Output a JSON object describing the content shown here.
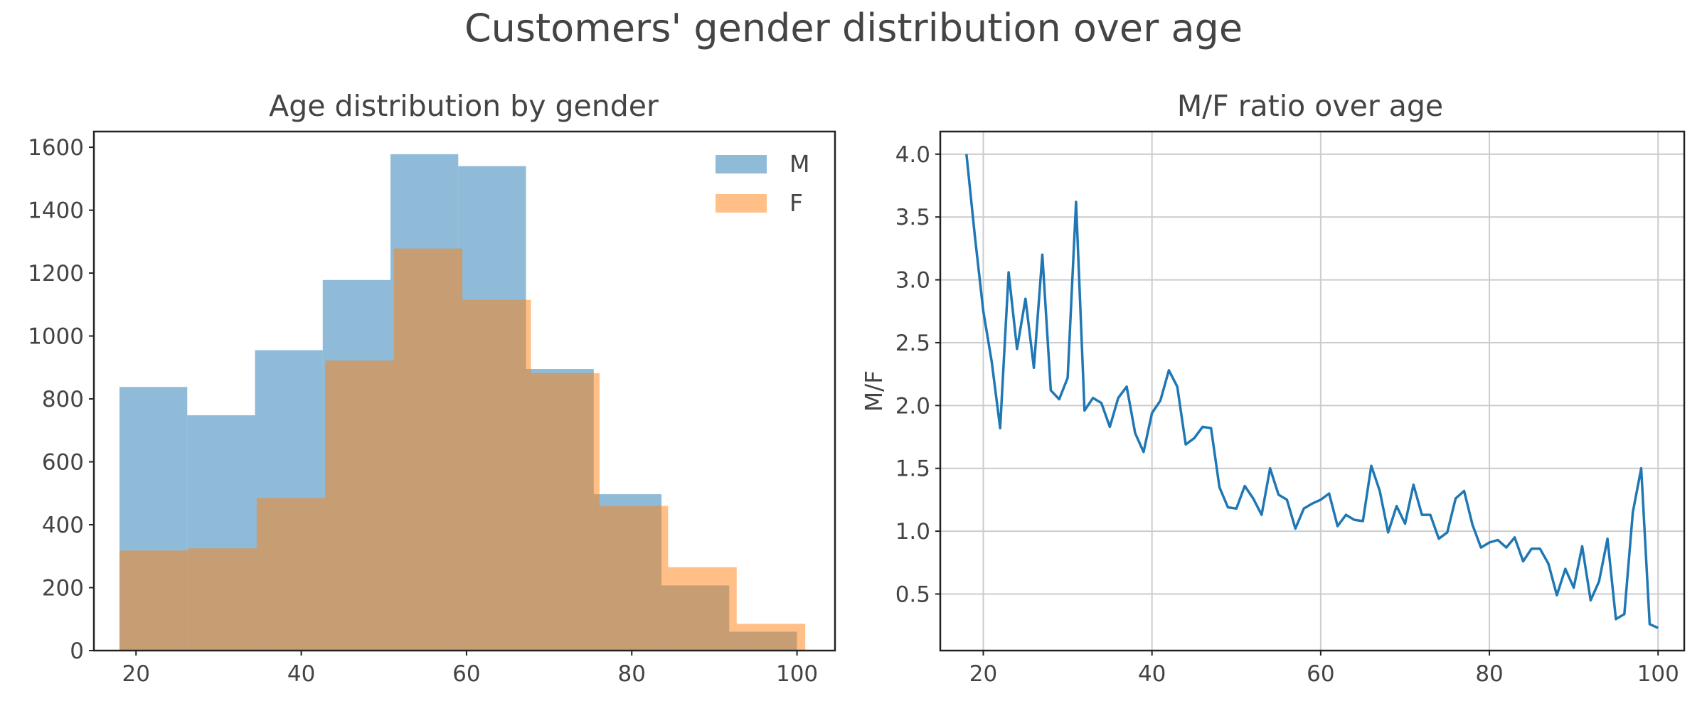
{
  "figure": {
    "title": "Customers' gender distribution over age"
  },
  "chart_data": [
    {
      "type": "bar",
      "subtype": "histogram-overlay",
      "title": "Age distribution by gender",
      "xlabel": "",
      "ylabel": "",
      "xlim": [
        14.9,
        104.6
      ],
      "ylim": [
        0,
        1650
      ],
      "xticks": [
        20,
        40,
        60,
        80,
        100
      ],
      "yticks": [
        0,
        200,
        400,
        600,
        800,
        1000,
        1200,
        1400,
        1600
      ],
      "grid": false,
      "legend": "top-right",
      "series": [
        {
          "name": "M",
          "color": "#1f77b4",
          "opacity": 0.5,
          "bin_edges": [
            18,
            26.2,
            34.4,
            42.6,
            50.8,
            59,
            67.2,
            75.4,
            83.6,
            91.8,
            100
          ],
          "values": [
            838,
            748,
            955,
            1178,
            1578,
            1540,
            895,
            497,
            207,
            60
          ]
        },
        {
          "name": "F",
          "color": "#ff7f0e",
          "opacity": 0.5,
          "bin_edges": [
            18,
            26.3,
            34.6,
            42.9,
            51.2,
            59.5,
            67.8,
            76.1,
            84.4,
            92.7,
            101
          ],
          "values": [
            318,
            325,
            485,
            922,
            1278,
            1115,
            882,
            460,
            265,
            85
          ]
        }
      ]
    },
    {
      "type": "line",
      "title": "M/F ratio over age",
      "xlabel": "",
      "ylabel": "M/F",
      "xlim": [
        14.9,
        103.1
      ],
      "ylim": [
        0.05,
        4.18
      ],
      "xticks": [
        20,
        40,
        60,
        80,
        100
      ],
      "yticks": [
        0.5,
        1.0,
        1.5,
        2.0,
        2.5,
        3.0,
        3.5,
        4.0
      ],
      "ytick_labels": [
        "0.5",
        "1.0",
        "1.5",
        "2.0",
        "2.5",
        "3.0",
        "3.5",
        "4.0"
      ],
      "grid": true,
      "series": [
        {
          "color": "#1f77b4",
          "x": [
            18,
            19,
            20,
            21,
            22,
            23,
            24,
            25,
            26,
            27,
            28,
            29,
            30,
            31,
            32,
            33,
            34,
            35,
            36,
            37,
            38,
            39,
            40,
            41,
            42,
            43,
            44,
            45,
            46,
            47,
            48,
            49,
            50,
            51,
            52,
            53,
            54,
            55,
            56,
            57,
            58,
            59,
            60,
            61,
            62,
            63,
            64,
            65,
            66,
            67,
            68,
            69,
            70,
            71,
            72,
            73,
            74,
            75,
            76,
            77,
            78,
            79,
            80,
            81,
            82,
            83,
            84,
            85,
            86,
            87,
            88,
            89,
            90,
            91,
            92,
            93,
            94,
            95,
            96,
            97,
            98,
            99,
            100
          ],
          "y": [
            4.0,
            3.35,
            2.75,
            2.35,
            1.82,
            3.06,
            2.45,
            2.85,
            2.3,
            3.2,
            2.12,
            2.05,
            2.22,
            3.62,
            1.96,
            2.06,
            2.02,
            1.83,
            2.06,
            2.15,
            1.78,
            1.63,
            1.94,
            2.04,
            2.28,
            2.15,
            1.69,
            1.74,
            1.83,
            1.82,
            1.35,
            1.19,
            1.18,
            1.36,
            1.26,
            1.13,
            1.5,
            1.29,
            1.25,
            1.02,
            1.18,
            1.22,
            1.25,
            1.3,
            1.04,
            1.13,
            1.09,
            1.08,
            1.52,
            1.32,
            0.99,
            1.2,
            1.06,
            1.37,
            1.13,
            1.13,
            0.94,
            0.99,
            1.26,
            1.32,
            1.05,
            0.87,
            0.91,
            0.93,
            0.87,
            0.95,
            0.76,
            0.86,
            0.86,
            0.74,
            0.49,
            0.7,
            0.55,
            0.88,
            0.45,
            0.6,
            0.94,
            0.3,
            0.34,
            1.15,
            1.5,
            0.26,
            0.23
          ]
        }
      ]
    }
  ]
}
